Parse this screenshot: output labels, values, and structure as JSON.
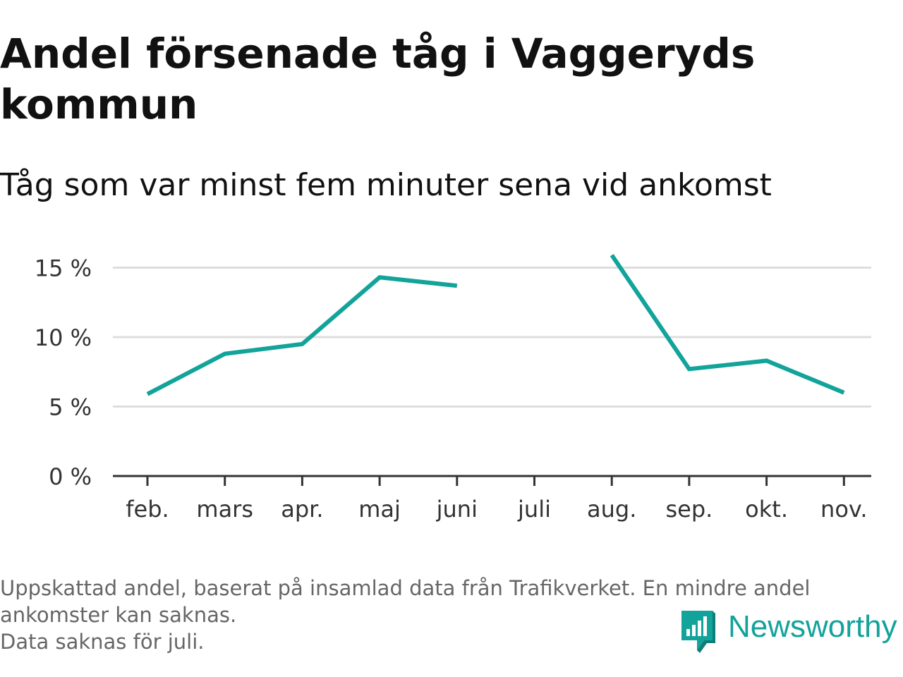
{
  "title": "Andel försenade tåg i Vaggeryds kommun",
  "subtitle": "Tåg som var minst fem minuter sena vid ankomst",
  "footnote": {
    "line1": "Uppskattad andel, baserat på insamlad data från Trafikverket. En mindre andel",
    "line2": "ankomster kan saknas.",
    "line3": "Data saknas för juli."
  },
  "brand": {
    "name": "Newsworthy",
    "logo_icon": "newsworthy-bar-chart-badge-icon",
    "color": "#12a39a"
  },
  "chart_data": {
    "type": "line",
    "categories": [
      "feb.",
      "mars",
      "apr.",
      "maj",
      "juni",
      "juli",
      "aug.",
      "sep.",
      "okt.",
      "nov."
    ],
    "series": [
      {
        "values": [
          5.9,
          8.8,
          9.5,
          14.3,
          13.7,
          null,
          15.9,
          7.7,
          8.3,
          6.0
        ],
        "color": "#12a39a"
      }
    ],
    "y_ticks": [
      {
        "value": 0,
        "label": "0 %"
      },
      {
        "value": 5,
        "label": "5 %"
      },
      {
        "value": 10,
        "label": "10 %"
      },
      {
        "value": 15,
        "label": "15 %"
      }
    ],
    "ylim": [
      0,
      16.5
    ],
    "grid": true,
    "legend": "none"
  }
}
